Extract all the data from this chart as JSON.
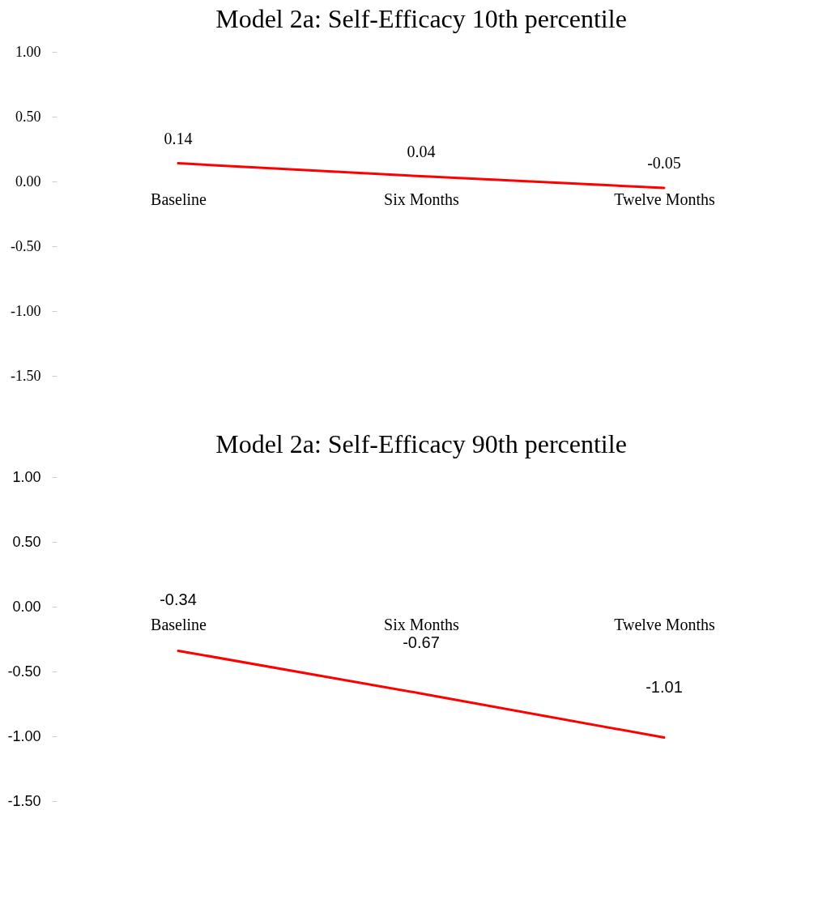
{
  "chart_data": [
    {
      "type": "line",
      "title": "Model 2a: Self-Efficacy 10th percentile",
      "categories": [
        "Baseline",
        "Six Months",
        "Twelve Months"
      ],
      "series": [
        {
          "color": "#ff0000",
          "values": [
            0.14,
            0.04,
            -0.05
          ]
        }
      ],
      "ylim": [
        -1.5,
        1.0
      ],
      "yticks": [
        {
          "value": -1.5,
          "label": "-1.50"
        },
        {
          "value": -1,
          "label": "-1.00"
        },
        {
          "value": -0.5,
          "label": "-0.50"
        },
        {
          "value": 0,
          "label": "0.00"
        },
        {
          "value": 0.5,
          "label": "0.50"
        },
        {
          "value": 1,
          "label": "1.00"
        }
      ],
      "data_labels": true
    },
    {
      "type": "line",
      "title": "Model 2a: Self-Efficacy 90th percentile",
      "categories": [
        "Baseline",
        "Six Months",
        "Twelve Months"
      ],
      "series": [
        {
          "color": "#ff0000",
          "values": [
            -0.34,
            -0.67,
            -1.01
          ]
        }
      ],
      "ylim": [
        -1.5,
        1.0
      ],
      "yticks": [
        {
          "value": -1.5,
          "label": "-1.50"
        },
        {
          "value": -1,
          "label": "-1.00"
        },
        {
          "value": -0.5,
          "label": "-0.50"
        },
        {
          "value": 0,
          "label": "0.00"
        },
        {
          "value": 0.5,
          "label": "0.50"
        },
        {
          "value": 1,
          "label": "1.00"
        }
      ],
      "data_labels": true
    }
  ]
}
